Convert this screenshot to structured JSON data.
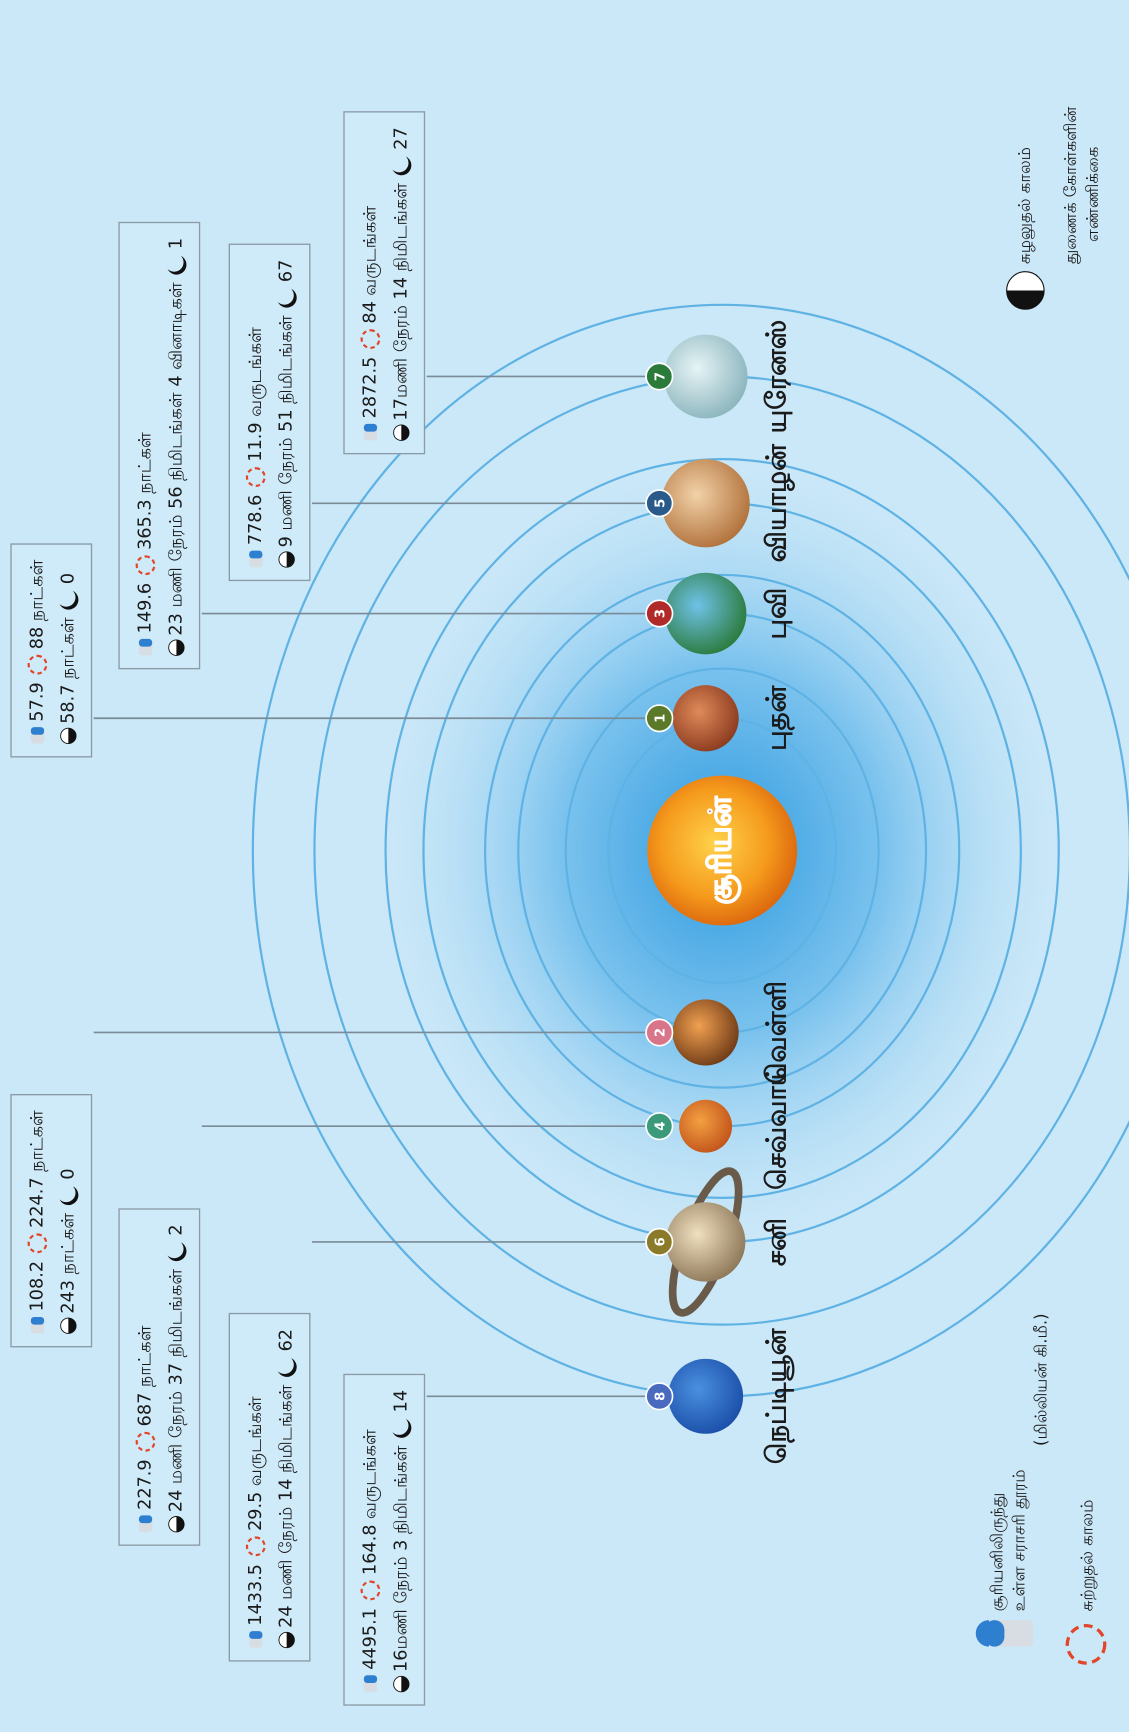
{
  "sun": {
    "label": "சூரியன்"
  },
  "planets": [
    {
      "number": 1,
      "name": "புதன்",
      "distance": 57.9,
      "revolution": "88 நாட்கள்",
      "rotation": "58.7 நாட்கள்",
      "moons": 0
    },
    {
      "number": 2,
      "name": "வெள்ளி",
      "distance": 108.2,
      "revolution": "224.7 நாட்கள்",
      "rotation": "243 நாட்கள்",
      "moons": 0
    },
    {
      "number": 3,
      "name": "புவி",
      "distance": 149.6,
      "revolution": "365.3 நாட்கள்",
      "rotation": "23 மணி நேரம் 56 நிமிடங்கள் 4 வினாடிகள்",
      "moons": 1
    },
    {
      "number": 4,
      "name": "செவ்வாய்",
      "distance": 227.9,
      "revolution": "687 நாட்கள்",
      "rotation": "24 மணி நேரம் 37 நிமிடங்கள்",
      "moons": 2
    },
    {
      "number": 5,
      "name": "வியாழன்",
      "distance": 778.6,
      "revolution": "11.9 வருடங்கள்",
      "rotation": "9 மணி நேரம் 51 நிமிடங்கள்",
      "moons": 67
    },
    {
      "number": 6,
      "name": "சனி",
      "distance": 1433.5,
      "revolution": "29.5 வருடங்கள்",
      "rotation": "24 மணி நேரம் 14 நிமிடங்கள்",
      "moons": 62
    },
    {
      "number": 7,
      "name": "யுரேனஸ்",
      "distance": 2872.5,
      "revolution": "84 வருடங்கள்",
      "rotation": "17மணி நேரம் 14 நிமிடங்கள்",
      "moons": 27
    },
    {
      "number": 8,
      "name": "நெப்டியூன்",
      "distance": 4495.1,
      "revolution": "164.8 வருடங்கள்",
      "rotation": "16மணி நேரம் 3 நிமிடங்கள்",
      "moons": 14
    }
  ],
  "legend": {
    "distance": [
      "சூரியனிலிருந்து",
      "உள்ள சராசரி தூரம்"
    ],
    "distance_unit": "(மில்லியன் கி.மீ.)",
    "revolution": "சுற்றுதல் காலம்",
    "rotation": "சுழலுதல் காலம்",
    "moons": [
      "துணைக் கோள்களின்",
      "எண்ணிக்கை"
    ]
  }
}
